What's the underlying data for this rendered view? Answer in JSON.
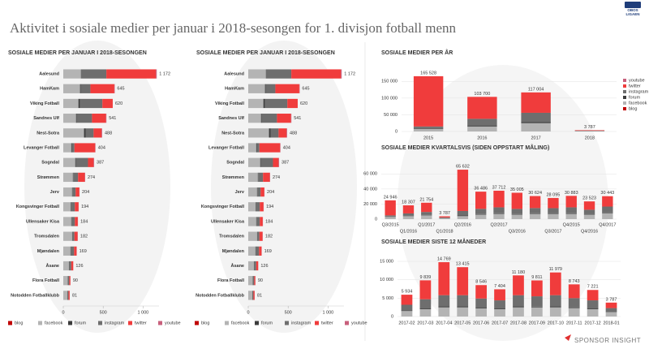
{
  "header": {
    "title": "Aktivitet i sosiale medier per januar i 2018-sesongen for 1. divisjon fotball menn",
    "logo": [
      "OBOS",
      "LIGAEN"
    ]
  },
  "footer": {
    "brand": "SPONSOR INSIGHT"
  },
  "chart_data": [
    {
      "type": "bar",
      "horizontal": true,
      "legend": "bottom",
      "title": "SOSIALE MEDIER PER JANUAR I 2018-SESONGEN",
      "categories": [
        "Aalesund",
        "HamKam",
        "Viking Fotball",
        "Sandnes Ulf",
        "Nest-Sotra",
        "Levanger Fotball",
        "Sogndal",
        "Strømmen",
        "Jerv",
        "Kongsvinger Fotball",
        "Ullensaker Kisa",
        "Tromsdalen",
        "Mjøndalen",
        "Åsane",
        "Flora Fotball",
        "Notodden Fotballklubb"
      ],
      "series": [
        {
          "name": "blog",
          "color": "#c00000",
          "values": [
            0,
            0,
            0,
            0,
            0,
            0,
            0,
            0,
            0,
            0,
            0,
            0,
            0,
            0,
            0,
            0
          ]
        },
        {
          "name": "facebook",
          "color": "#b4b4b4",
          "values": [
            220,
            210,
            190,
            160,
            260,
            100,
            150,
            120,
            110,
            95,
            100,
            110,
            90,
            70,
            55,
            50
          ]
        },
        {
          "name": "forum",
          "color": "#3c3c3c",
          "values": [
            0,
            10,
            20,
            10,
            20,
            10,
            10,
            5,
            5,
            10,
            5,
            0,
            5,
            0,
            0,
            0
          ]
        },
        {
          "name": "instagram",
          "color": "#6e6e6e",
          "values": [
            320,
            120,
            280,
            190,
            100,
            30,
            150,
            60,
            40,
            40,
            40,
            30,
            40,
            30,
            20,
            15
          ]
        },
        {
          "name": "twitter",
          "color": "#f03c3c",
          "values": [
            620,
            300,
            130,
            175,
            100,
            260,
            70,
            85,
            47,
            47,
            37,
            40,
            32,
            25,
            14,
            15
          ]
        },
        {
          "name": "youtube",
          "color": "#c8607c",
          "values": [
            12,
            5,
            0,
            6,
            8,
            4,
            7,
            4,
            2,
            2,
            2,
            2,
            2,
            1,
            1,
            1
          ]
        }
      ],
      "totals": [
        1172,
        645,
        620,
        541,
        488,
        404,
        387,
        274,
        204,
        194,
        184,
        182,
        169,
        126,
        90,
        81
      ],
      "total_labels": [
        "1 172",
        "645",
        "620",
        "541",
        "488",
        "404",
        "387",
        "274",
        "204",
        "194",
        "184",
        "182",
        "169",
        "126",
        "90",
        "81"
      ],
      "xlim": [
        0,
        1200
      ],
      "xticks": [
        0,
        500,
        {
          "value": 1000,
          "label": "1 000"
        }
      ]
    },
    {
      "type": "bar",
      "horizontal": true,
      "legend": "bottom",
      "title": "SOSIALE MEDIER PER JANUAR I 2018-SESONGEN",
      "categories": [
        "Aalesund",
        "HamKam",
        "Viking Fotball",
        "Sandnes Ulf",
        "Nest-Sotra",
        "Levanger Fotball",
        "Sogndal",
        "Strømmen",
        "Jerv",
        "Kongsvinger Fotball",
        "Ullensaker Kisa",
        "Tromsdalen",
        "Mjøndalen",
        "Åsane",
        "Flora Fotball",
        "Notodden Fotballklubb"
      ],
      "series": [
        {
          "name": "blog",
          "color": "#c00000",
          "values": [
            0,
            0,
            0,
            0,
            0,
            0,
            0,
            0,
            0,
            0,
            0,
            0,
            0,
            0,
            0,
            0
          ]
        },
        {
          "name": "facebook",
          "color": "#b4b4b4",
          "values": [
            220,
            210,
            190,
            160,
            260,
            100,
            150,
            120,
            110,
            95,
            100,
            110,
            90,
            70,
            55,
            50
          ]
        },
        {
          "name": "forum",
          "color": "#3c3c3c",
          "values": [
            0,
            10,
            20,
            10,
            20,
            10,
            10,
            5,
            5,
            10,
            5,
            0,
            5,
            0,
            0,
            0
          ]
        },
        {
          "name": "instagram",
          "color": "#6e6e6e",
          "values": [
            320,
            120,
            280,
            190,
            100,
            30,
            150,
            60,
            40,
            40,
            40,
            30,
            40,
            30,
            20,
            15
          ]
        },
        {
          "name": "twitter",
          "color": "#f03c3c",
          "values": [
            620,
            300,
            130,
            175,
            100,
            260,
            70,
            85,
            47,
            47,
            37,
            40,
            32,
            25,
            14,
            15
          ]
        },
        {
          "name": "youtube",
          "color": "#c8607c",
          "values": [
            12,
            5,
            0,
            6,
            8,
            4,
            7,
            4,
            2,
            2,
            2,
            2,
            2,
            1,
            1,
            1
          ]
        }
      ],
      "totals": [
        1172,
        645,
        620,
        541,
        488,
        404,
        387,
        274,
        204,
        194,
        184,
        182,
        169,
        126,
        90,
        81
      ],
      "total_labels": [
        "1 172",
        "645",
        "620",
        "541",
        "488",
        "404",
        "387",
        "274",
        "204",
        "194",
        "184",
        "182",
        "169",
        "126",
        "90",
        "81"
      ],
      "xlim": [
        0,
        1200
      ],
      "xticks": [
        0,
        500,
        {
          "value": 1000,
          "label": "1 000"
        }
      ]
    },
    {
      "type": "bar",
      "horizontal": false,
      "legend": "right",
      "grid": true,
      "title": "SOSIALE MEDIER PER ÅR",
      "categories": [
        "2015",
        "2016",
        "2017",
        "2018"
      ],
      "series": [
        {
          "name": "blog",
          "color": "#c00000",
          "values": [
            0,
            0,
            0,
            0
          ]
        },
        {
          "name": "facebook",
          "color": "#b4b4b4",
          "values": [
            8000,
            15000,
            25000,
            1200
          ]
        },
        {
          "name": "forum",
          "color": "#3c3c3c",
          "values": [
            2000,
            3000,
            3000,
            100
          ]
        },
        {
          "name": "instagram",
          "color": "#6e6e6e",
          "values": [
            5000,
            20000,
            28000,
            1000
          ]
        },
        {
          "name": "twitter",
          "color": "#f03c3c",
          "values": [
            150528,
            65700,
            61004,
            1487
          ]
        },
        {
          "name": "youtube",
          "color": "#c8607c",
          "values": [
            0,
            0,
            0,
            0
          ]
        }
      ],
      "totals": [
        165528,
        103700,
        117004,
        3787
      ],
      "total_labels": [
        "165 528",
        "103 700",
        "117 004",
        "3 787"
      ],
      "ylim": [
        0,
        175000
      ],
      "yticks": [
        0,
        {
          "value": 50000,
          "label": "50 000"
        },
        {
          "value": 100000,
          "label": "100 000"
        },
        {
          "value": 150000,
          "label": "150 000"
        }
      ]
    },
    {
      "type": "bar",
      "horizontal": false,
      "stagger": true,
      "grid": true,
      "title": "SOSIALE MEDIER KVARTALSVIS (SIDEN OPPSTART MÅLING)",
      "categories": [
        "Q3/2015",
        "Q1/2016",
        "Q1/2017",
        "Q1/2018",
        "Q2/2016",
        null,
        "Q2/2017",
        "Q3/2016",
        null,
        "Q3/2017",
        "Q4/2015",
        "Q4/2016",
        "Q4/2017"
      ],
      "series": [
        {
          "name": "facebook",
          "color": "#b4b4b4",
          "values": [
            3000,
            4000,
            5000,
            1200,
            4000,
            6000,
            7000,
            6000,
            7000,
            7000,
            7000,
            6000,
            8000
          ]
        },
        {
          "name": "forum",
          "color": "#3c3c3c",
          "values": [
            500,
            600,
            500,
            100,
            800,
            700,
            700,
            600,
            700,
            600,
            700,
            500,
            700
          ]
        },
        {
          "name": "instagram",
          "color": "#6e6e6e",
          "values": [
            1500,
            3000,
            4000,
            1000,
            6000,
            7000,
            8000,
            7000,
            7000,
            7000,
            8000,
            6000,
            8000
          ]
        },
        {
          "name": "twitter",
          "color": "#f03c3c",
          "values": [
            19946,
            10707,
            12254,
            1487,
            54832,
            22786,
            22012,
            21405,
            15924,
            13495,
            15183,
            11023,
            13743
          ]
        }
      ],
      "totals": [
        24946,
        18307,
        21754,
        3787,
        65632,
        36486,
        37712,
        35005,
        30624,
        28095,
        30883,
        23523,
        30443
      ],
      "total_labels": [
        "24 946",
        "18 307",
        "21 754",
        "3 787",
        "65 632",
        "36 486",
        "37 712",
        "35 005",
        "30 624",
        "28 095",
        "30 883",
        "23 523",
        "30 443"
      ],
      "ylim": [
        0,
        70000
      ],
      "yticks": [
        0,
        {
          "value": 20000,
          "label": "20 000"
        },
        {
          "value": 40000,
          "label": "40 000"
        },
        {
          "value": 60000,
          "label": "60 000"
        }
      ]
    },
    {
      "type": "bar",
      "horizontal": false,
      "grid": true,
      "title": "SOSIALE MEDIER SISTE 12 MÅNEDER",
      "categories": [
        "2017-02",
        "2017-03",
        "2017-04",
        "2017-05",
        "2017-06",
        "2017-07",
        "2017-08",
        "2017-09",
        "2017-10",
        "2017-11",
        "2017-12",
        "2018-01"
      ],
      "series": [
        {
          "name": "facebook",
          "color": "#b4b4b4",
          "values": [
            1500,
            2000,
            2500,
            2500,
            2200,
            2000,
            2500,
            2500,
            2500,
            2300,
            2000,
            1200
          ]
        },
        {
          "name": "forum",
          "color": "#3c3c3c",
          "values": [
            200,
            200,
            300,
            300,
            200,
            200,
            300,
            200,
            300,
            200,
            200,
            100
          ]
        },
        {
          "name": "instagram",
          "color": "#6e6e6e",
          "values": [
            1500,
            2500,
            3000,
            3000,
            2500,
            2200,
            3000,
            2800,
            3000,
            2500,
            2200,
            1000
          ]
        },
        {
          "name": "twitter",
          "color": "#f03c3c",
          "values": [
            2734,
            5139,
            8969,
            7615,
            3646,
            3004,
            5380,
            4311,
            6179,
            3743,
            2821,
            1487
          ]
        }
      ],
      "totals": [
        5934,
        9839,
        14769,
        13415,
        8546,
        7404,
        11180,
        9811,
        11979,
        8743,
        7221,
        3787
      ],
      "total_labels": [
        "5 934",
        "9 839",
        "14 769",
        "13 415",
        "8 546",
        "7 404",
        "11 180",
        "9 811",
        "11 979",
        "8 743",
        "7 221",
        "3 787"
      ],
      "ylim": [
        0,
        15000
      ],
      "yticks": [
        0,
        {
          "value": 5000,
          "label": "5 000"
        },
        {
          "value": 10000,
          "label": "10 000"
        },
        {
          "value": 15000,
          "label": "15 000"
        }
      ]
    }
  ]
}
